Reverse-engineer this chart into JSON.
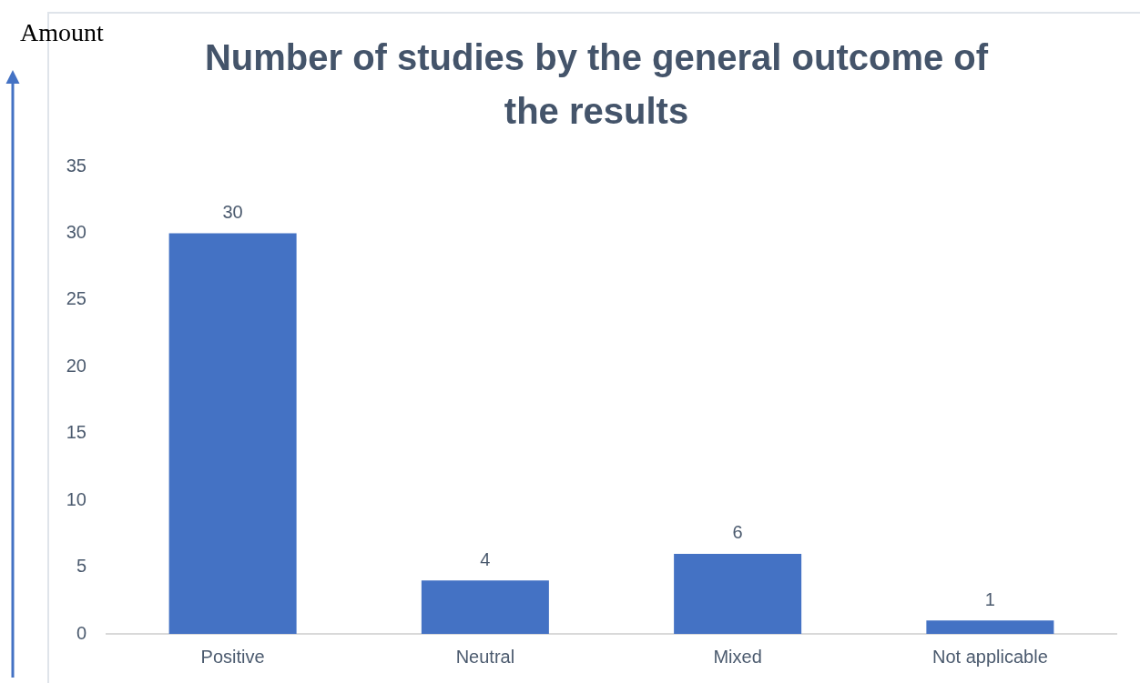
{
  "chart_data": {
    "type": "bar",
    "title": "Number of studies by the general outcome of the results",
    "ylabel": "Amount",
    "categories": [
      "Positive",
      "Neutral",
      "Mixed",
      "Not applicable"
    ],
    "values": [
      30,
      4,
      6,
      1
    ],
    "color": "#4472c4",
    "ylim": [
      0,
      35
    ],
    "yticks": [
      0,
      5,
      10,
      15,
      20,
      25,
      30,
      35
    ],
    "data_labels": true
  }
}
